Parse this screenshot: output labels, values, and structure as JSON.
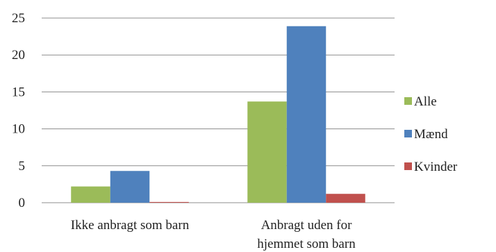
{
  "chart_data": {
    "type": "bar",
    "categories": [
      "Ikke anbragt som barn",
      "Anbragt uden for hjemmet som barn"
    ],
    "category_label_lines": [
      [
        "Ikke anbragt som barn"
      ],
      [
        "Anbragt uden for",
        "hjemmet som barn"
      ]
    ],
    "series": [
      {
        "name": "Alle",
        "color": "#9BBB59",
        "values": [
          2.2,
          13.7
        ]
      },
      {
        "name": "Mænd",
        "color": "#4F81BD",
        "values": [
          4.3,
          23.9
        ]
      },
      {
        "name": "Kvinder",
        "color": "#C0504D",
        "values": [
          0.1,
          1.2
        ]
      }
    ],
    "ylim": [
      0,
      25
    ],
    "yticks": [
      0,
      5,
      10,
      15,
      20,
      25
    ],
    "grid": true,
    "legend_position": "right",
    "title": "",
    "xlabel": "",
    "ylabel": ""
  }
}
